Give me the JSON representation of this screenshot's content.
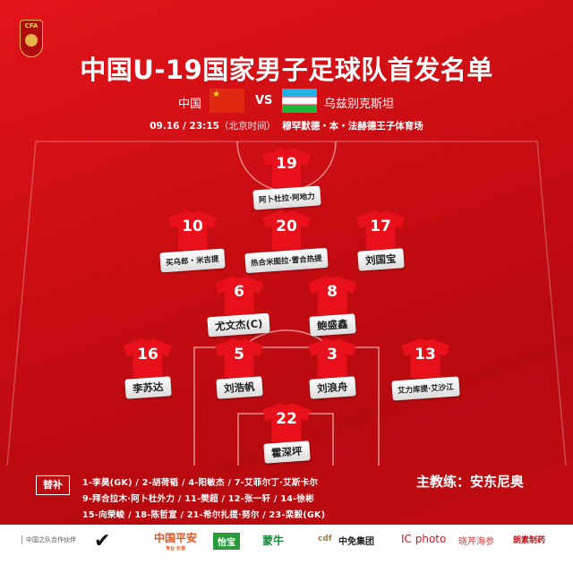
{
  "header": {
    "logo_text": "CFA",
    "title": "中国U-19国家男子足球队首发名单"
  },
  "match": {
    "home": "中国",
    "away": "乌兹别克斯坦",
    "vs": "VS",
    "home_flag_star": "★",
    "datetime": "09.16 / 23:15",
    "tz": "（北京时间）",
    "venue": "穆罕默德・本・法赫德王子体育场"
  },
  "colors": {
    "background": "#c70d12",
    "label": "#ffffff",
    "shirt": "#e8101a"
  },
  "players": [
    {
      "number": "19",
      "name": "阿卜杜拉·阿地力"
    },
    {
      "number": "10",
      "name": "买乌郎・米吉提"
    },
    {
      "number": "20",
      "name": "热合米图拉·雪合热提"
    },
    {
      "number": "17",
      "name": "刘国宝"
    },
    {
      "number": "6",
      "name": "尤文杰(C)"
    },
    {
      "number": "8",
      "name": "鲍盛鑫"
    },
    {
      "number": "16",
      "name": "李苏达"
    },
    {
      "number": "5",
      "name": "刘浩帆"
    },
    {
      "number": "3",
      "name": "刘浪舟"
    },
    {
      "number": "13",
      "name": "艾力库提·艾沙江"
    },
    {
      "number": "22",
      "name": "霍深坪"
    }
  ],
  "subs": {
    "label": "替补",
    "lines": [
      "1-李昊(GK) / 2-胡荷韬 / 4-阳敏杰 / 7-艾菲尔丁·艾斯卡尔",
      "9-拜合拉木·阿卜杜外力 / 11-樊超 / 12-张一轩 / 14-徐彬",
      "15-向荣峻 / 18-陈哲宣 / 21-希尔扎提·努尔 / 23-栾毅(GK)"
    ]
  },
  "coach": "主教练：安东尼奥",
  "sponsors": {
    "label": "中国之队合作伙伴",
    "items": [
      "中国平安",
      "专业·价值",
      "怡宝",
      "蒙牛",
      "cdf",
      "中免集团",
      "IC photo",
      "晓芹海参",
      "朗素制药"
    ]
  }
}
